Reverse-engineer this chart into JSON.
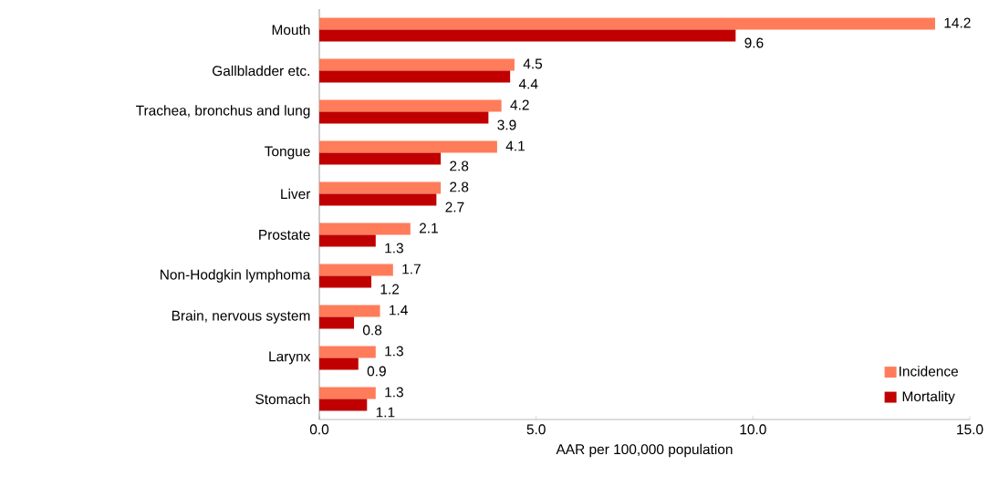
{
  "chart_data": {
    "type": "bar",
    "orientation": "horizontal",
    "xlabel": "AAR per 100,000 population",
    "categories": [
      "Mouth",
      "Gallbladder etc.",
      "Trachea, bronchus and lung",
      "Tongue",
      "Liver",
      "Prostate",
      "Non-Hodgkin lymphoma",
      "Brain, nervous system",
      "Larynx",
      "Stomach"
    ],
    "series": [
      {
        "name": "Incidence",
        "color": "#ff7c5a",
        "values": [
          14.2,
          4.5,
          4.2,
          4.1,
          2.8,
          2.1,
          1.7,
          1.4,
          1.3,
          1.3
        ]
      },
      {
        "name": "Mortality",
        "color": "#c00000",
        "values": [
          9.6,
          4.4,
          3.9,
          2.8,
          2.7,
          1.3,
          1.2,
          0.8,
          0.9,
          1.1
        ]
      }
    ],
    "xlim": [
      0,
      15
    ],
    "xticks": [
      {
        "value": 0,
        "label": "0.0"
      },
      {
        "value": 5,
        "label": "5.0"
      },
      {
        "value": 10,
        "label": "10.0"
      },
      {
        "value": 15,
        "label": "15.0"
      }
    ],
    "legend": "bottom right",
    "data_labels": true
  }
}
